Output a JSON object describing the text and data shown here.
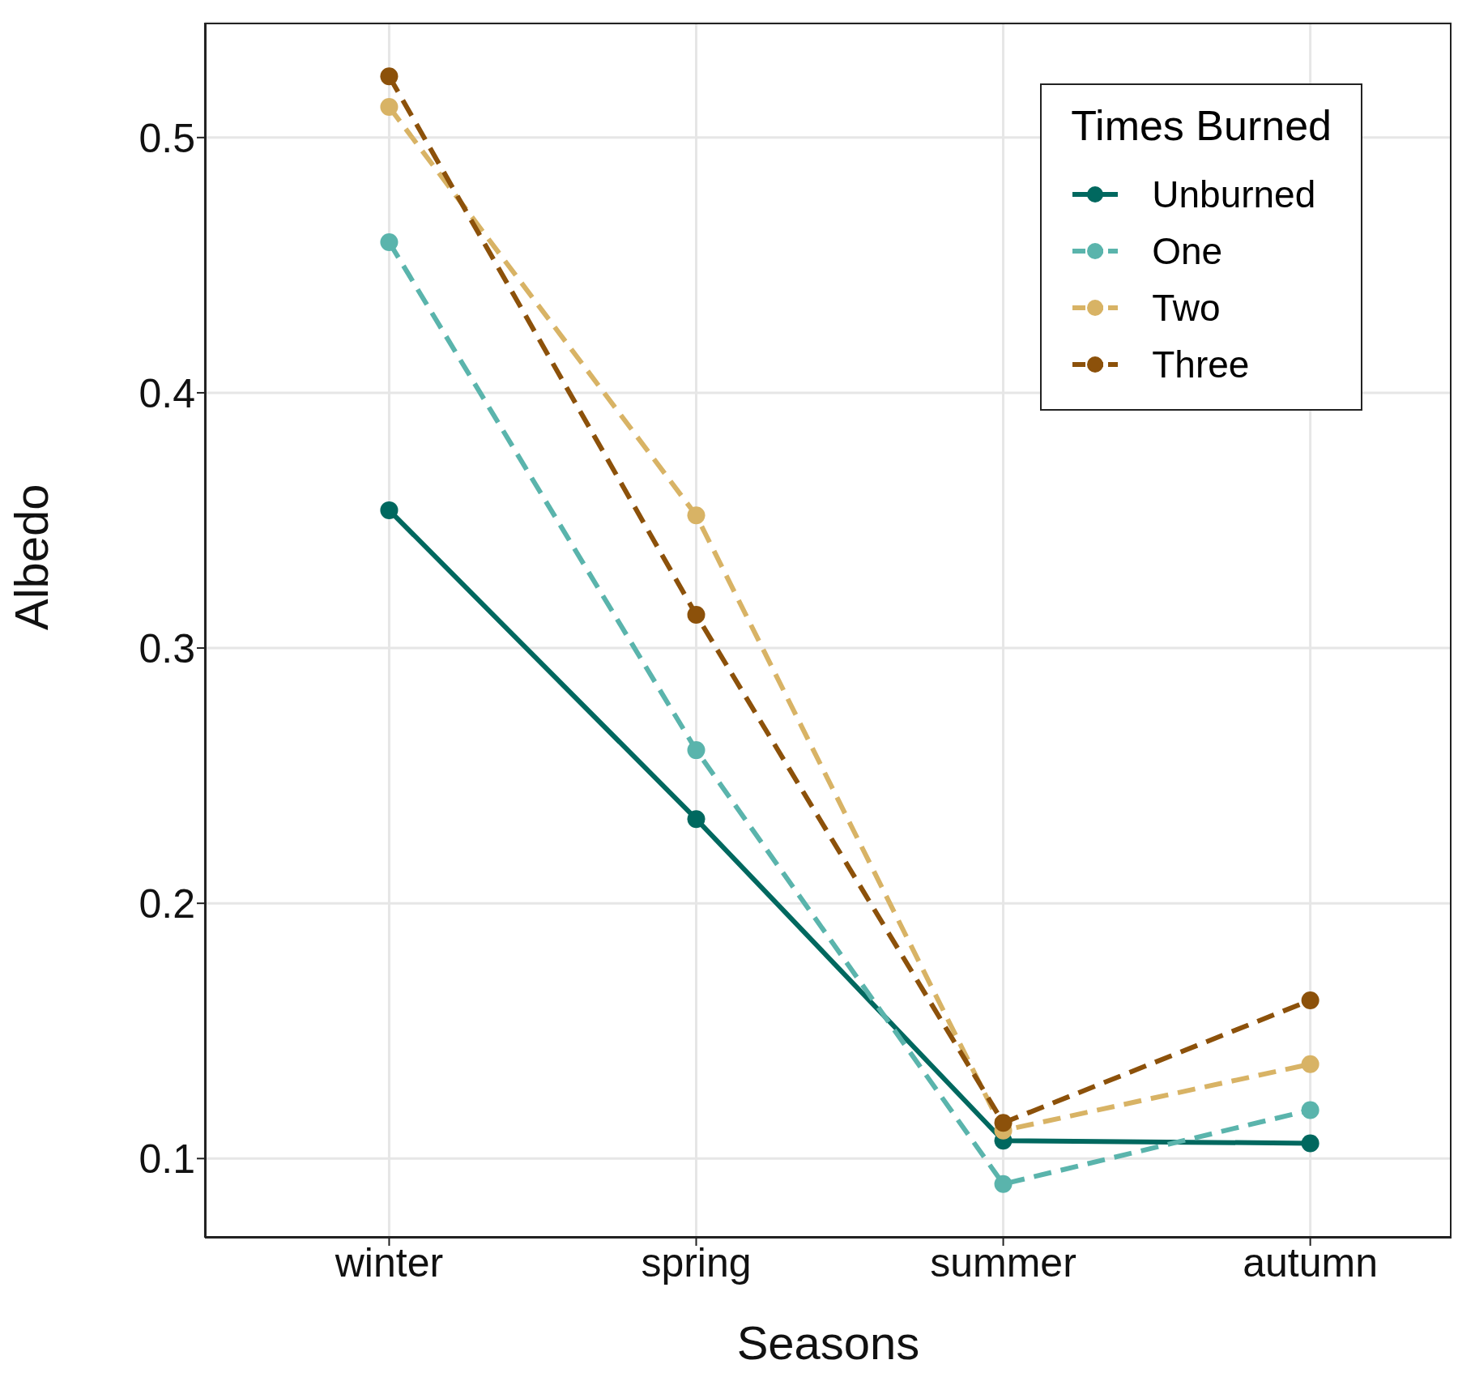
{
  "chart_data": {
    "type": "line",
    "xlabel": "Seasons",
    "ylabel": "Albedo",
    "legend_title": "Times Burned",
    "categories": [
      "winter",
      "spring",
      "summer",
      "autumn"
    ],
    "series": [
      {
        "name": "Unburned",
        "color": "#00685f",
        "line_style": "solid",
        "values": [
          0.354,
          0.233,
          0.107,
          0.106
        ]
      },
      {
        "name": "One",
        "color": "#5ab4ac",
        "line_style": "dashed",
        "values": [
          0.459,
          0.26,
          0.09,
          0.119
        ]
      },
      {
        "name": "Two",
        "color": "#d8b365",
        "line_style": "dashed",
        "values": [
          0.512,
          0.352,
          0.111,
          0.137
        ]
      },
      {
        "name": "Three",
        "color": "#8c510a",
        "line_style": "dashed",
        "values": [
          0.524,
          0.313,
          0.114,
          0.162
        ]
      }
    ],
    "ylim": [
      0.069,
      0.545
    ],
    "yticks": [
      0.1,
      0.2,
      0.3,
      0.4,
      0.5
    ],
    "grid": true,
    "legend": "top right",
    "marker": "circle"
  }
}
